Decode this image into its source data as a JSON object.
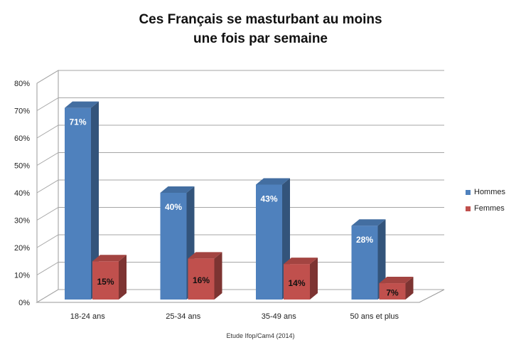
{
  "chart_data": {
    "type": "bar",
    "title": [
      "Ces Français se masturbant au moins",
      "une fois par semaine"
    ],
    "categories": [
      "18-24 ans",
      "25-34 ans",
      "35-49 ans",
      "50 ans et plus"
    ],
    "series": [
      {
        "name": "Hommes",
        "values": [
          71,
          40,
          43,
          28
        ],
        "labels": [
          "71%",
          "40%",
          "43%",
          "28%"
        ],
        "color": "#4f81bd"
      },
      {
        "name": "Femmes",
        "values": [
          15,
          16,
          14,
          7
        ],
        "labels": [
          "15%",
          "16%",
          "14%",
          "7%"
        ],
        "color": "#c0504d"
      }
    ],
    "yticks": [
      "0%",
      "10%",
      "20%",
      "30%",
      "40%",
      "50%",
      "60%",
      "70%",
      "80%"
    ],
    "ylim": [
      0,
      80
    ],
    "grid": true,
    "legend_position": "right",
    "source": "Etude Ifop/Cam4 (2014)",
    "style": "3d-clustered-column"
  }
}
